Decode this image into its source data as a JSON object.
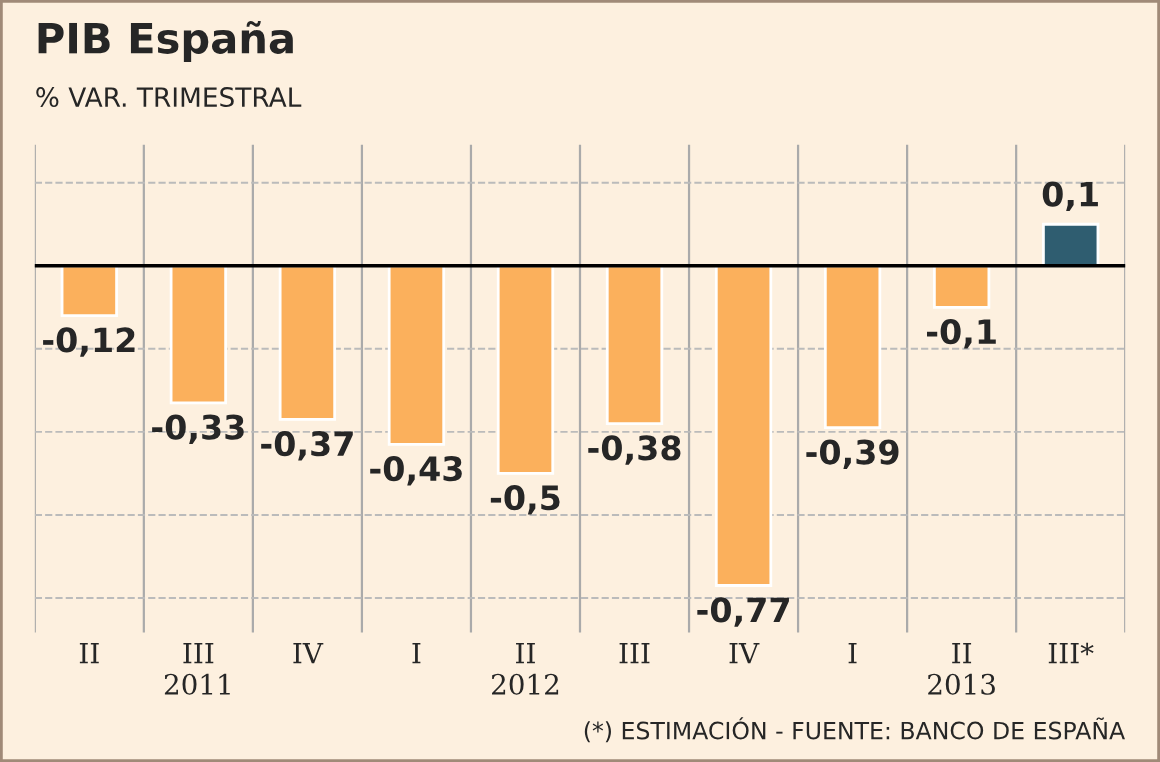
{
  "chart_data": {
    "type": "bar",
    "title": "PIB España",
    "subtitle": "% VAR. TRIMESTRAL",
    "categories": [
      "II",
      "III\n2011",
      "IV",
      "I",
      "II\n2012",
      "III",
      "IV",
      "I",
      "II\n2013",
      "III*"
    ],
    "values": [
      -0.12,
      -0.33,
      -0.37,
      -0.43,
      -0.5,
      -0.38,
      -0.77,
      -0.39,
      -0.1,
      0.1
    ],
    "colors": [
      "#fbb05c",
      "#fbb05c",
      "#fbb05c",
      "#fbb05c",
      "#fbb05c",
      "#fbb05c",
      "#fbb05c",
      "#fbb05c",
      "#fbb05c",
      "#2f5d70"
    ],
    "value_labels": [
      "-0,12",
      "-0,33",
      "-0,37",
      "-0,43",
      "-0,5",
      "-0,38",
      "-0,77",
      "-0,39",
      "-0,1",
      "0,1"
    ],
    "annotations": [
      "(*) ESTIMACIÓN - FUENTE: BANCO DE ESPAÑA"
    ],
    "grid": true,
    "tick_labels": "x"
  }
}
